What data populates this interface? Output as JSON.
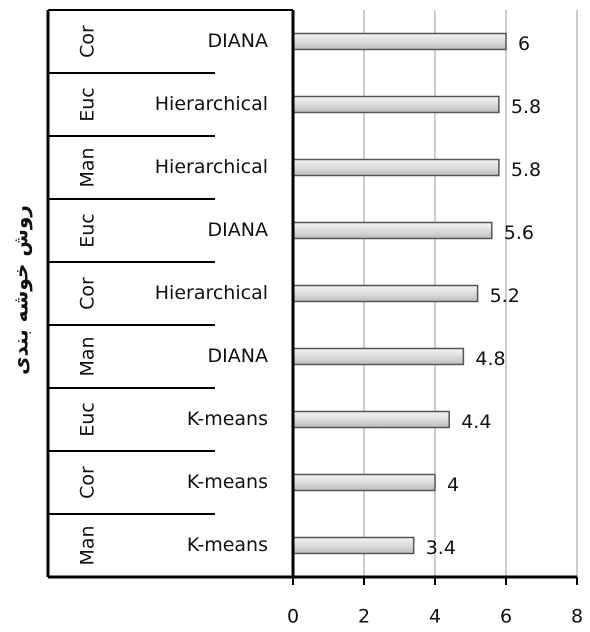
{
  "chart_data": {
    "type": "bar",
    "orientation": "horizontal",
    "y_label": "روش خوشه بندی",
    "categories": [
      "DIANA",
      "Hierarchical",
      "Hierarchical",
      "DIANA",
      "Hierarchical",
      "DIANA",
      "K-means",
      "K-means",
      "K-means"
    ],
    "groups": [
      "Cor",
      "Euc",
      "Man",
      "Euc",
      "Cor",
      "Man",
      "Euc",
      "Cor",
      "Man"
    ],
    "values": [
      6,
      5.8,
      5.8,
      5.6,
      5.2,
      4.8,
      4.4,
      4,
      3.4
    ],
    "color": "#d9d9d9",
    "xlim": [
      0,
      8
    ],
    "xticks": [
      0,
      2,
      4,
      6,
      8
    ],
    "grid": true
  }
}
